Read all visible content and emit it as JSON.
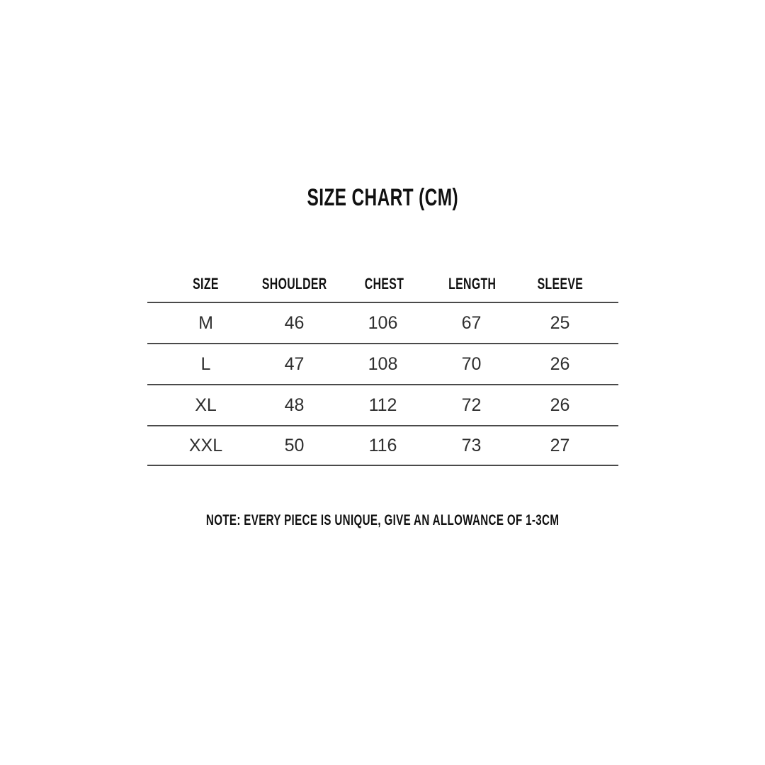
{
  "page": {
    "background": "#ffffff",
    "text_color": "#2f2f2f",
    "heading_color": "#111111",
    "line_color": "#4a4a4a"
  },
  "chart_data": {
    "type": "table",
    "title": "SIZE CHART (CM)",
    "columns": [
      "SIZE",
      "SHOULDER",
      "CHEST",
      "LENGTH",
      "SLEEVE"
    ],
    "rows": [
      [
        "M",
        46,
        106,
        67,
        25
      ],
      [
        "L",
        47,
        108,
        70,
        26
      ],
      [
        "XL",
        48,
        112,
        72,
        26
      ],
      [
        "XXL",
        50,
        116,
        73,
        27
      ]
    ],
    "note": "NOTE: EVERY PIECE IS UNIQUE, GIVE AN ALLOWANCE OF 1-3CM",
    "grid": "horizontal-lines-only",
    "units": "cm"
  }
}
